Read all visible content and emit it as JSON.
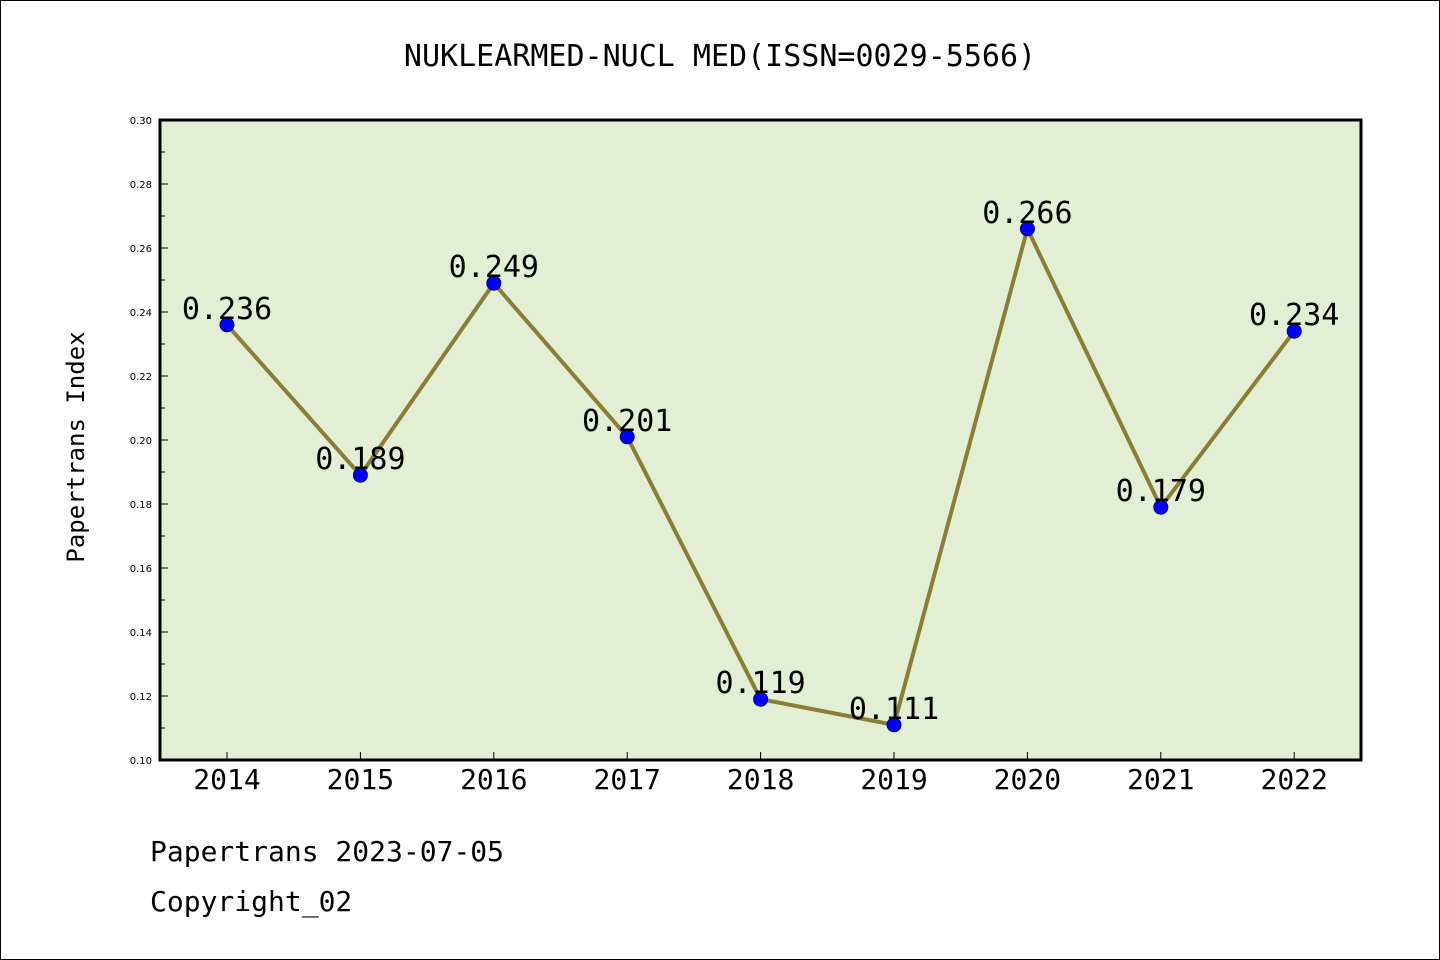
{
  "chart_data": {
    "type": "line",
    "title": "NUKLEARMED-NUCL MED(ISSN=0029-5566)",
    "xlabel": "",
    "ylabel": "Papertrans Index",
    "categories": [
      "2014",
      "2015",
      "2016",
      "2017",
      "2018",
      "2019",
      "2020",
      "2021",
      "2022"
    ],
    "values": [
      0.236,
      0.189,
      0.249,
      0.201,
      0.119,
      0.111,
      0.266,
      0.179,
      0.234
    ],
    "data_labels": [
      "0.236",
      "0.189",
      "0.249",
      "0.201",
      "0.119",
      "0.111",
      "0.266",
      "0.179",
      "0.234"
    ],
    "ylim": [
      0.1,
      0.3
    ],
    "yticks": [
      "0.10",
      "0.12",
      "0.14",
      "0.16",
      "0.18",
      "0.20",
      "0.22",
      "0.24",
      "0.26",
      "0.28",
      "0.30"
    ],
    "grid": false,
    "legend": "none",
    "colors": {
      "plot_background": "#e2efd5",
      "line": "#8b7d35",
      "marker": "#0000ff"
    }
  },
  "footer": {
    "date_line": "Papertrans 2023-07-05",
    "copyright": "Copyright_02"
  }
}
